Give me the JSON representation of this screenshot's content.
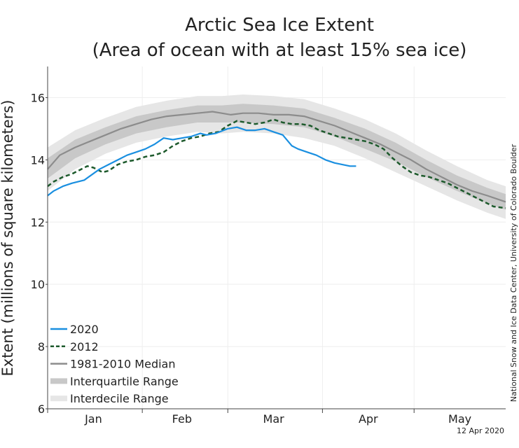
{
  "chart_data": {
    "type": "line",
    "title": "Arctic Sea Ice Extent",
    "subtitle": "(Area of ocean with at least 15% sea ice)",
    "ylabel": "Extent (millions of square kilometers)",
    "xlabel": "",
    "ylim": [
      6,
      17
    ],
    "yticks": [
      "6",
      "8",
      "10",
      "12",
      "14",
      "16"
    ],
    "xlim": [
      1,
      151
    ],
    "months": [
      {
        "label": "Jan",
        "start": 1,
        "mid": 16
      },
      {
        "label": "Feb",
        "start": 32,
        "mid": 45
      },
      {
        "label": "Mar",
        "start": 60,
        "mid": 75
      },
      {
        "label": "Apr",
        "start": 91,
        "mid": 106
      },
      {
        "label": "May",
        "start": 121,
        "mid": 136
      }
    ],
    "x_end": 151,
    "grid": true,
    "legend_position": "bottom-left",
    "series": [
      {
        "name": "2020",
        "color": "#1a8fe0",
        "style": "solid",
        "x": [
          1,
          3,
          6,
          9,
          13,
          18,
          21,
          24,
          27,
          30,
          33,
          36,
          39,
          42,
          45,
          48,
          51,
          53,
          56,
          60,
          63,
          66,
          69,
          72,
          75,
          78,
          81,
          83,
          86,
          89,
          92,
          95,
          100,
          101,
          102
        ],
        "values": [
          12.85,
          13.0,
          13.15,
          13.25,
          13.35,
          13.7,
          13.85,
          14.0,
          14.15,
          14.25,
          14.35,
          14.5,
          14.7,
          14.65,
          14.7,
          14.75,
          14.85,
          14.8,
          14.85,
          15.0,
          15.05,
          14.95,
          14.95,
          15.0,
          14.9,
          14.8,
          14.45,
          14.35,
          14.25,
          14.15,
          14.0,
          13.9,
          13.8,
          13.8,
          13.8
        ]
      },
      {
        "name": "2012",
        "color": "#1d5a2c",
        "style": "dashed",
        "x": [
          1,
          3,
          6,
          9,
          12,
          14,
          16,
          19,
          21,
          24,
          27,
          30,
          33,
          36,
          39,
          42,
          45,
          48,
          51,
          54,
          57,
          60,
          63,
          66,
          69,
          72,
          75,
          78,
          81,
          84,
          87,
          90,
          93,
          96,
          99,
          102,
          105,
          108,
          111,
          114,
          117,
          120,
          123,
          126,
          129,
          132,
          135,
          138,
          141,
          144,
          147,
          151
        ],
        "values": [
          13.15,
          13.3,
          13.45,
          13.55,
          13.7,
          13.8,
          13.75,
          13.6,
          13.65,
          13.85,
          13.95,
          14.0,
          14.1,
          14.15,
          14.25,
          14.45,
          14.6,
          14.7,
          14.75,
          14.85,
          14.9,
          15.1,
          15.25,
          15.2,
          15.15,
          15.2,
          15.3,
          15.2,
          15.15,
          15.15,
          15.1,
          14.95,
          14.85,
          14.75,
          14.7,
          14.65,
          14.6,
          14.5,
          14.35,
          14.05,
          13.8,
          13.6,
          13.5,
          13.45,
          13.35,
          13.25,
          13.1,
          12.95,
          12.8,
          12.65,
          12.5,
          12.45
        ]
      },
      {
        "name": "1981-2010 Median",
        "color": "#8c8c8c",
        "style": "solid",
        "x": [
          1,
          5,
          10,
          15,
          20,
          25,
          30,
          35,
          40,
          45,
          50,
          55,
          58,
          61,
          65,
          70,
          75,
          80,
          85,
          90,
          95,
          100,
          105,
          110,
          115,
          120,
          125,
          130,
          135,
          140,
          145,
          151
        ],
        "values": [
          13.7,
          14.15,
          14.4,
          14.6,
          14.8,
          15.0,
          15.15,
          15.3,
          15.4,
          15.45,
          15.5,
          15.55,
          15.5,
          15.45,
          15.5,
          15.5,
          15.45,
          15.45,
          15.4,
          15.25,
          15.1,
          14.9,
          14.7,
          14.5,
          14.25,
          14.0,
          13.7,
          13.45,
          13.2,
          13.0,
          12.85,
          12.65
        ]
      },
      {
        "name": "Interquartile Range",
        "color": "#c8c8c8",
        "style": "band",
        "x": [
          1,
          10,
          20,
          30,
          40,
          50,
          58,
          65,
          75,
          85,
          95,
          105,
          115,
          125,
          135,
          145,
          151
        ],
        "low": [
          13.4,
          14.05,
          14.5,
          14.85,
          15.05,
          15.2,
          15.2,
          15.2,
          15.15,
          15.05,
          14.75,
          14.35,
          13.95,
          13.45,
          13.0,
          12.6,
          12.4
        ],
        "high": [
          14.05,
          14.65,
          15.05,
          15.4,
          15.6,
          15.75,
          15.75,
          15.8,
          15.75,
          15.65,
          15.35,
          15.0,
          14.55,
          14.0,
          13.5,
          13.1,
          12.9
        ]
      },
      {
        "name": "Interdecile Range",
        "color": "#e6e6e6",
        "style": "band",
        "x": [
          1,
          10,
          20,
          30,
          40,
          50,
          58,
          65,
          75,
          85,
          95,
          105,
          115,
          125,
          135,
          145,
          151
        ],
        "low": [
          13.0,
          13.7,
          14.2,
          14.55,
          14.75,
          14.9,
          14.85,
          14.9,
          14.85,
          14.7,
          14.45,
          14.05,
          13.6,
          13.15,
          12.7,
          12.3,
          12.1
        ],
        "high": [
          14.4,
          14.95,
          15.35,
          15.7,
          15.9,
          16.05,
          16.05,
          16.1,
          16.05,
          15.95,
          15.65,
          15.3,
          14.85,
          14.3,
          13.8,
          13.35,
          13.15
        ]
      }
    ]
  },
  "legend": [
    {
      "label": "2020",
      "kind": "line",
      "color": "#1a8fe0"
    },
    {
      "label": "2012",
      "kind": "dashed",
      "color": "#1d5a2c"
    },
    {
      "label": "1981-2010 Median",
      "kind": "line",
      "color": "#8c8c8c"
    },
    {
      "label": "Interquartile Range",
      "kind": "band",
      "color": "#c8c8c8"
    },
    {
      "label": "Interdecile Range",
      "kind": "band",
      "color": "#e6e6e6"
    }
  ],
  "credit": "National Snow and Ice Data Center, University of Colorado Boulder",
  "date_stamp": "12 Apr 2020"
}
